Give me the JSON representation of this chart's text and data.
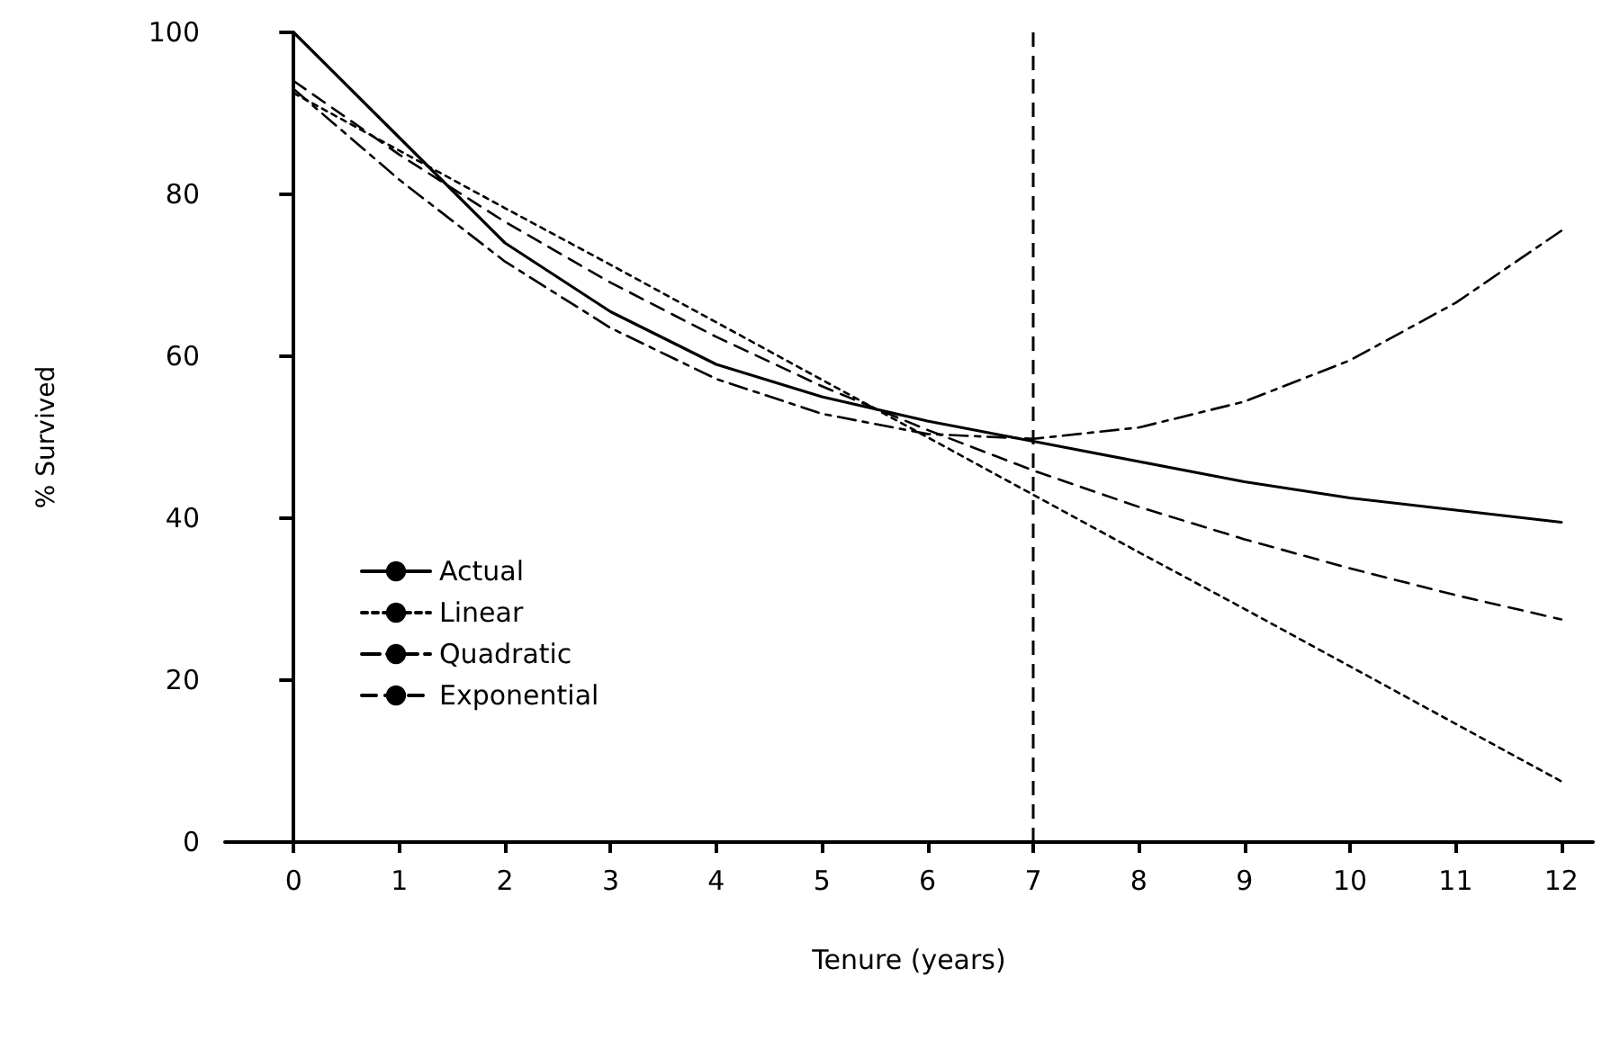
{
  "chart_data": {
    "type": "line",
    "xlabel": "Tenure (years)",
    "ylabel": "% Survived",
    "x": [
      0,
      1,
      2,
      3,
      4,
      5,
      6,
      7,
      8,
      9,
      10,
      11,
      12
    ],
    "series": [
      {
        "name": "Actual",
        "color": "#000000",
        "line_style": "solid",
        "values": [
          100,
          87,
          74,
          65.5,
          59,
          55,
          52,
          49.5,
          47,
          44.5,
          42.5,
          41,
          39.5
        ]
      },
      {
        "name": "Linear",
        "color": "#000000",
        "line_style": "dotted",
        "values": [
          92.5,
          85.4,
          78.3,
          71.3,
          64.2,
          57.1,
          50,
          42.9,
          35.8,
          28.8,
          21.7,
          14.6,
          7.5
        ]
      },
      {
        "name": "Quadratic",
        "color": "#000000",
        "line_style": "dashdot",
        "values": [
          93,
          81.8,
          71.7,
          63.5,
          57.2,
          52.9,
          50.4,
          49.8,
          51.2,
          54.4,
          59.5,
          66.6,
          75.5
        ]
      },
      {
        "name": "Exponential",
        "color": "#000000",
        "line_style": "dashed",
        "values": [
          94,
          84.9,
          76.6,
          69.1,
          62.4,
          56.3,
          50.9,
          45.9,
          41.4,
          37.4,
          33.8,
          30.5,
          27.5
        ]
      }
    ],
    "xlim": [
      -0.65,
      12.3
    ],
    "xticks": [
      0,
      1,
      2,
      3,
      4,
      5,
      6,
      7,
      8,
      9,
      10,
      11,
      12
    ],
    "ylim": [
      0,
      100
    ],
    "yticks": [
      0,
      20,
      40,
      60,
      80,
      100
    ],
    "ref_lines": [
      {
        "axis": "x",
        "value": 7,
        "line_style": "dashed",
        "color": "#000000"
      }
    ],
    "grid": false,
    "legend": "bottom left",
    "marker": "none"
  }
}
